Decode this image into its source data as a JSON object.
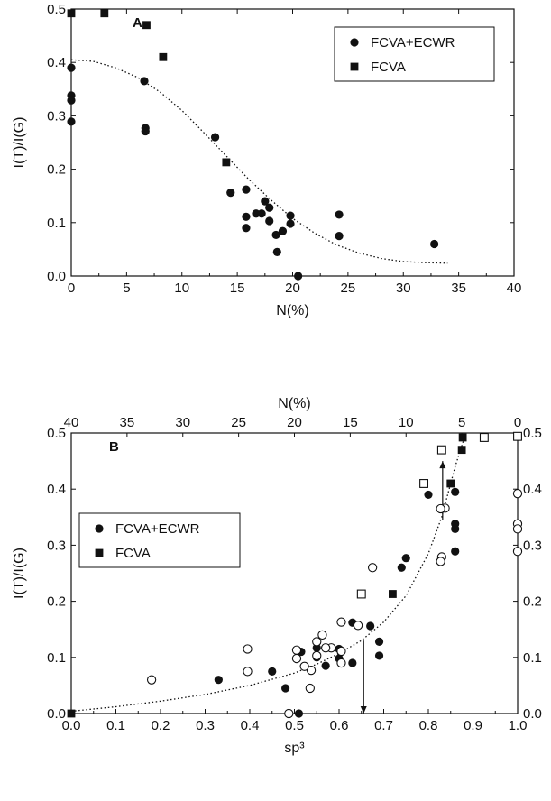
{
  "chart_data": [
    {
      "type": "scatter",
      "panel_label": "A",
      "xlabel": "N(%)",
      "ylabel": "I(T)/I(G)",
      "xlim": [
        0,
        40
      ],
      "ylim": [
        0,
        0.5
      ],
      "x_ticks": [
        0,
        5,
        10,
        15,
        20,
        25,
        30,
        35,
        40
      ],
      "y_ticks": [
        0.0,
        0.1,
        0.2,
        0.3,
        0.4,
        0.5
      ],
      "x_tick_labels": [
        "0",
        "5",
        "10",
        "15",
        "20",
        "25",
        "30",
        "35",
        "40"
      ],
      "y_tick_labels": [
        "0.0",
        "0.1",
        "0.2",
        "0.3",
        "0.4",
        "0.5"
      ],
      "legend_position": "top-right",
      "series": [
        {
          "name": "FCVA+ECWR",
          "marker": "circle",
          "points": [
            [
              0,
              0.39
            ],
            [
              0,
              0.338
            ],
            [
              0,
              0.329
            ],
            [
              0,
              0.289
            ],
            [
              6.6,
              0.365
            ],
            [
              6.7,
              0.277
            ],
            [
              6.7,
              0.271
            ],
            [
              13.0,
              0.26
            ],
            [
              14.4,
              0.156
            ],
            [
              15.8,
              0.162
            ],
            [
              15.8,
              0.111
            ],
            [
              15.8,
              0.09
            ],
            [
              16.7,
              0.117
            ],
            [
              17.2,
              0.117
            ],
            [
              17.5,
              0.14
            ],
            [
              17.9,
              0.128
            ],
            [
              17.9,
              0.103
            ],
            [
              18.5,
              0.077
            ],
            [
              18.6,
              0.045
            ],
            [
              19.1,
              0.084
            ],
            [
              19.8,
              0.113
            ],
            [
              19.8,
              0.098
            ],
            [
              20.5,
              0.0
            ],
            [
              24.2,
              0.115
            ],
            [
              24.2,
              0.075
            ],
            [
              32.8,
              0.06
            ]
          ]
        },
        {
          "name": "FCVA",
          "marker": "square",
          "points": [
            [
              0,
              0.492
            ],
            [
              3.0,
              0.492
            ],
            [
              6.8,
              0.47
            ],
            [
              8.3,
              0.41
            ],
            [
              14.0,
              0.213
            ]
          ]
        }
      ],
      "fit_curve": {
        "style": "dotted",
        "points": [
          [
            0,
            0.405
          ],
          [
            2,
            0.402
          ],
          [
            4,
            0.39
          ],
          [
            6,
            0.372
          ],
          [
            8,
            0.345
          ],
          [
            10,
            0.31
          ],
          [
            12,
            0.268
          ],
          [
            14,
            0.225
          ],
          [
            16,
            0.182
          ],
          [
            18,
            0.143
          ],
          [
            20,
            0.108
          ],
          [
            22,
            0.08
          ],
          [
            24,
            0.058
          ],
          [
            26,
            0.043
          ],
          [
            28,
            0.033
          ],
          [
            30,
            0.027
          ],
          [
            32,
            0.025
          ],
          [
            34,
            0.024
          ]
        ]
      }
    },
    {
      "type": "scatter",
      "panel_label": "B",
      "xlabel": "sp³",
      "x2label": "N(%)",
      "ylabel": "I(T)/I(G)",
      "xlim": [
        0,
        1.0
      ],
      "x2lim": [
        40,
        0
      ],
      "ylim": [
        0,
        0.5
      ],
      "x_ticks": [
        0.0,
        0.1,
        0.2,
        0.3,
        0.4,
        0.5,
        0.6,
        0.7,
        0.8,
        0.9,
        1.0
      ],
      "x_tick_labels": [
        "0.0",
        "0.1",
        "0.2",
        "0.3",
        "0.4",
        "0.5",
        "0.6",
        "0.7",
        "0.8",
        "0.9",
        "1.0"
      ],
      "x2_ticks": [
        40,
        35,
        30,
        25,
        20,
        15,
        10,
        5,
        0
      ],
      "x2_tick_labels": [
        "40",
        "35",
        "30",
        "25",
        "20",
        "15",
        "10",
        "5",
        "0"
      ],
      "y_ticks": [
        0.0,
        0.1,
        0.2,
        0.3,
        0.4,
        0.5
      ],
      "y_tick_labels": [
        "0.0",
        "0.1",
        "0.2",
        "0.3",
        "0.4",
        "0.5"
      ],
      "y2_ticks": [
        0.0,
        0.1,
        0.2,
        0.3,
        0.4,
        0.5
      ],
      "y2_tick_labels": [
        "0.0",
        "0.1",
        "0.2",
        "0.3",
        "0.4",
        "0.5"
      ],
      "legend_position": "top-left",
      "series": [
        {
          "name": "FCVA+ECWR",
          "marker": "circle",
          "axis": "sp3",
          "points": [
            [
              0.33,
              0.06
            ],
            [
              0.45,
              0.075
            ],
            [
              0.48,
              0.045
            ],
            [
              0.515,
              0.11
            ],
            [
              0.51,
              0.0
            ],
            [
              0.55,
              0.117
            ],
            [
              0.55,
              0.1
            ],
            [
              0.57,
              0.085
            ],
            [
              0.57,
              0.117
            ],
            [
              0.6,
              0.115
            ],
            [
              0.6,
              0.098
            ],
            [
              0.63,
              0.09
            ],
            [
              0.63,
              0.162
            ],
            [
              0.67,
              0.156
            ],
            [
              0.69,
              0.128
            ],
            [
              0.69,
              0.103
            ],
            [
              0.74,
              0.26
            ],
            [
              0.75,
              0.277
            ],
            [
              0.8,
              0.39
            ],
            [
              0.86,
              0.395
            ],
            [
              0.86,
              0.338
            ],
            [
              0.86,
              0.329
            ],
            [
              0.86,
              0.289
            ]
          ]
        },
        {
          "name": "FCVA",
          "marker": "square",
          "axis": "sp3",
          "points": [
            [
              0.0,
              0.0
            ],
            [
              0.72,
              0.213
            ],
            [
              0.85,
              0.41
            ],
            [
              0.875,
              0.47
            ],
            [
              0.877,
              0.492
            ]
          ]
        },
        {
          "marker": "open-circle",
          "axis": "N",
          "points": [
            [
              0,
              0.392
            ],
            [
              0,
              0.338
            ],
            [
              0,
              0.329
            ],
            [
              0,
              0.289
            ],
            [
              6.5,
              0.366
            ],
            [
              6.9,
              0.365
            ],
            [
              6.8,
              0.279
            ],
            [
              6.9,
              0.271
            ],
            [
              13.0,
              0.26
            ],
            [
              14.3,
              0.157
            ],
            [
              15.8,
              0.163
            ],
            [
              15.8,
              0.111
            ],
            [
              15.8,
              0.09
            ],
            [
              16.7,
              0.117
            ],
            [
              17.2,
              0.117
            ],
            [
              17.5,
              0.14
            ],
            [
              18.0,
              0.128
            ],
            [
              18.0,
              0.103
            ],
            [
              18.5,
              0.077
            ],
            [
              18.6,
              0.045
            ],
            [
              19.1,
              0.084
            ],
            [
              19.8,
              0.113
            ],
            [
              19.8,
              0.098
            ],
            [
              20.5,
              0.0
            ],
            [
              24.2,
              0.115
            ],
            [
              24.2,
              0.075
            ],
            [
              32.8,
              0.06
            ]
          ]
        },
        {
          "marker": "open-square",
          "axis": "N",
          "points": [
            [
              0,
              0.494
            ],
            [
              3.0,
              0.492
            ],
            [
              6.8,
              0.47
            ],
            [
              8.4,
              0.41
            ],
            [
              14.0,
              0.213
            ]
          ]
        }
      ],
      "fit_curve": {
        "style": "dotted",
        "points": [
          [
            0.0,
            0.004
          ],
          [
            0.1,
            0.012
          ],
          [
            0.2,
            0.022
          ],
          [
            0.3,
            0.034
          ],
          [
            0.4,
            0.05
          ],
          [
            0.5,
            0.072
          ],
          [
            0.55,
            0.088
          ],
          [
            0.6,
            0.107
          ],
          [
            0.65,
            0.13
          ],
          [
            0.7,
            0.163
          ],
          [
            0.75,
            0.21
          ],
          [
            0.8,
            0.285
          ],
          [
            0.83,
            0.35
          ],
          [
            0.86,
            0.44
          ],
          [
            0.88,
            0.49
          ]
        ]
      },
      "arrows": [
        {
          "direction": "up",
          "x": 0.832,
          "y_from": 0.345,
          "y_to": 0.45
        },
        {
          "direction": "down",
          "x": 0.655,
          "y_from": 0.13,
          "y_to": 0.0
        }
      ]
    }
  ]
}
